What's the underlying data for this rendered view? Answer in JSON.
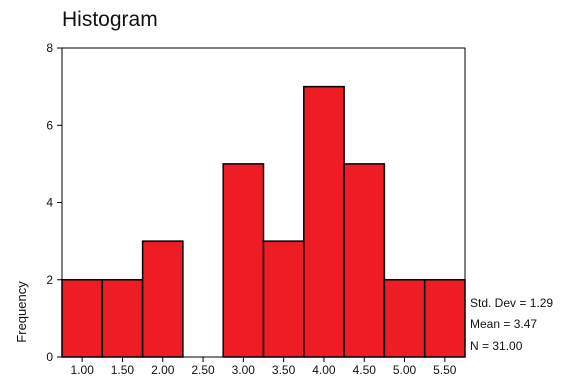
{
  "chart_data": {
    "type": "bar",
    "title": "Histogram",
    "xlabel": "",
    "ylabel": "Frequency",
    "categories": [
      "1.00",
      "1.50",
      "2.00",
      "2.50",
      "3.00",
      "3.50",
      "4.00",
      "4.50",
      "5.00",
      "5.50"
    ],
    "values": [
      2,
      2,
      3,
      0,
      5,
      3,
      7,
      5,
      2,
      2
    ],
    "ylim": [
      0,
      8
    ],
    "yticks": [
      "0",
      "2",
      "4",
      "6",
      "8"
    ],
    "grid": false,
    "bar_color": "#ee1c25",
    "stats": {
      "std_dev": "Std. Dev = 1.29",
      "mean": "Mean = 3.47",
      "n": "N = 31.00"
    }
  }
}
